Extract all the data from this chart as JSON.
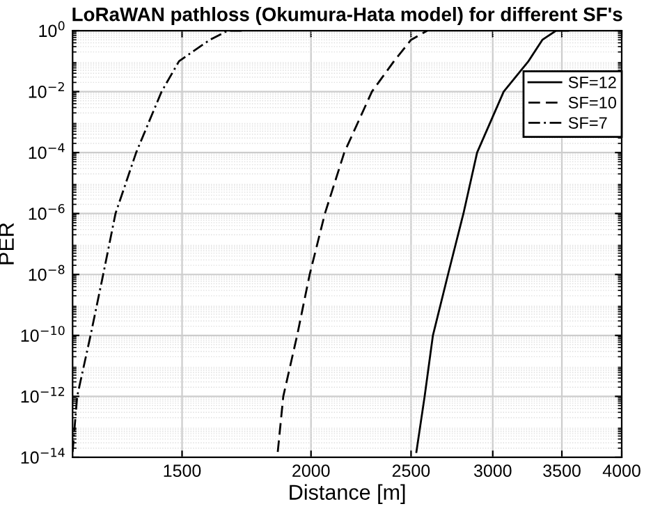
{
  "chart_data": {
    "type": "line",
    "title": "LoRaWAN pathloss (Okumura-Hata model) for different SF's",
    "xlabel": "Distance [m]",
    "ylabel": "PER",
    "log": "xy",
    "grid": true,
    "legend": "top right",
    "xlim": [
      1175,
      4000
    ],
    "ylim": [
      1e-14,
      1
    ],
    "xticks": [
      1500,
      2000,
      2500,
      3000,
      3500,
      4000
    ],
    "yticks": [
      {
        "value": 1e-14,
        "label": "10$^{−14}$"
      },
      {
        "value": 1e-12,
        "label": "10$^{−12}$"
      },
      {
        "value": 1e-10,
        "label": "10$^{−10}$"
      },
      {
        "value": 1e-08,
        "label": "10$^{−8}$"
      },
      {
        "value": 1e-06,
        "label": "10$^{−6}$"
      },
      {
        "value": 0.0001,
        "label": "10$^{−4}$"
      },
      {
        "value": 0.01,
        "label": "10$^{−2}$"
      },
      {
        "value": 1,
        "label": "10$^{0}$"
      }
    ],
    "series": [
      {
        "name": "SF=12",
        "color": "#000000",
        "line_style": "solid",
        "x": [
          2530,
          2577,
          2625,
          2715,
          2810,
          2897,
          3074,
          3249,
          3351,
          3455,
          3550
        ],
        "values": [
          1.5e-14,
          1e-12,
          1e-10,
          1e-08,
          1e-06,
          0.0001,
          0.01,
          0.1,
          0.5,
          1,
          1
        ]
      },
      {
        "name": "SF=10",
        "color": "#000000",
        "line_style": "dashed",
        "x": [
          1857,
          1880,
          1939,
          1994,
          2063,
          2154,
          2291,
          2407,
          2500,
          2592
        ],
        "values": [
          1.5e-14,
          1e-12,
          1e-10,
          1e-08,
          1e-06,
          0.0001,
          0.01,
          0.1,
          0.5,
          1
        ]
      },
      {
        "name": "SF=7",
        "color": "#000000",
        "line_style": "dashdot",
        "x": [
          1175,
          1187,
          1223,
          1258,
          1293,
          1354,
          1433,
          1490,
          1596,
          1661,
          1720
        ],
        "values": [
          1.5e-14,
          1e-12,
          1e-10,
          1e-08,
          1e-06,
          0.0001,
          0.01,
          0.1,
          0.5,
          1,
          1
        ]
      }
    ]
  }
}
